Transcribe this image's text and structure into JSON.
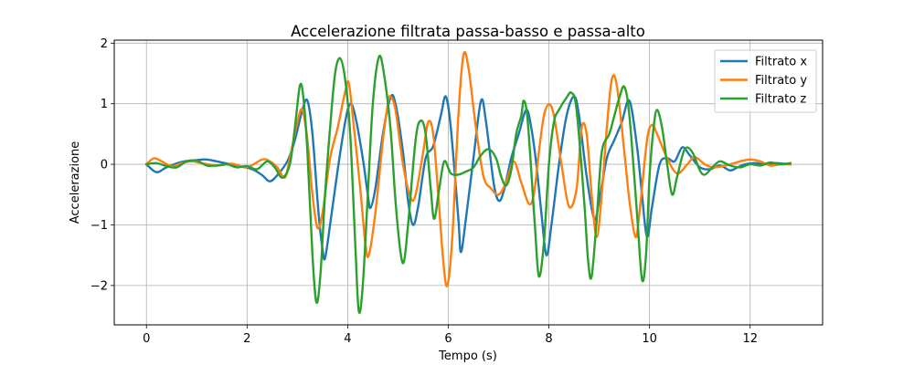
{
  "chart_data": {
    "type": "line",
    "title": "Accelerazione filtrata passa-basso e passa-alto",
    "xlabel": "Tempo (s)",
    "ylabel": "Accelerazione",
    "xlim": [
      -0.64,
      13.44
    ],
    "ylim": [
      -2.65,
      2.05
    ],
    "xticks": [
      0,
      2,
      4,
      6,
      8,
      10,
      12
    ],
    "yticks": [
      -2,
      -1,
      0,
      1,
      2
    ],
    "xtick_labels": [
      "0",
      "2",
      "4",
      "6",
      "8",
      "10",
      "12"
    ],
    "ytick_labels": [
      "−2",
      "−1",
      "0",
      "1",
      "2"
    ],
    "grid": true,
    "legend_position": "top-right",
    "series": [
      {
        "name": "Filtrato x",
        "color": "#1f77b4",
        "points": [
          [
            0,
            0
          ],
          [
            0.2,
            -0.13
          ],
          [
            0.4,
            -0.05
          ],
          [
            0.7,
            0.04
          ],
          [
            1.0,
            0.07
          ],
          [
            1.2,
            0.08
          ],
          [
            1.5,
            0.03
          ],
          [
            1.8,
            -0.02
          ],
          [
            2.1,
            -0.08
          ],
          [
            2.3,
            -0.18
          ],
          [
            2.45,
            -0.28
          ],
          [
            2.6,
            -0.18
          ],
          [
            2.8,
            0.05
          ],
          [
            2.95,
            0.4
          ],
          [
            3.1,
            0.9
          ],
          [
            3.2,
            1.05
          ],
          [
            3.3,
            0.5
          ],
          [
            3.42,
            -0.8
          ],
          [
            3.5,
            -1.4
          ],
          [
            3.55,
            -1.55
          ],
          [
            3.65,
            -1.0
          ],
          [
            3.8,
            -0.1
          ],
          [
            3.95,
            0.7
          ],
          [
            4.05,
            1.0
          ],
          [
            4.15,
            0.8
          ],
          [
            4.3,
            0.1
          ],
          [
            4.4,
            -0.5
          ],
          [
            4.45,
            -0.72
          ],
          [
            4.55,
            -0.4
          ],
          [
            4.7,
            0.5
          ],
          [
            4.85,
            1.1
          ],
          [
            4.95,
            1.0
          ],
          [
            5.1,
            0.2
          ],
          [
            5.2,
            -0.6
          ],
          [
            5.3,
            -1.0
          ],
          [
            5.4,
            -0.7
          ],
          [
            5.55,
            0.1
          ],
          [
            5.7,
            0.3
          ],
          [
            5.85,
            0.8
          ],
          [
            5.95,
            1.12
          ],
          [
            6.05,
            0.6
          ],
          [
            6.2,
            -0.9
          ],
          [
            6.25,
            -1.45
          ],
          [
            6.35,
            -0.9
          ],
          [
            6.5,
            0.1
          ],
          [
            6.65,
            1.05
          ],
          [
            6.75,
            0.7
          ],
          [
            6.9,
            -0.3
          ],
          [
            7.0,
            -0.6
          ],
          [
            7.1,
            -0.45
          ],
          [
            7.25,
            0.1
          ],
          [
            7.4,
            0.5
          ],
          [
            7.55,
            0.9
          ],
          [
            7.65,
            0.6
          ],
          [
            7.75,
            0.0
          ],
          [
            7.85,
            -0.8
          ],
          [
            7.95,
            -1.5
          ],
          [
            8.05,
            -1.0
          ],
          [
            8.2,
            0.0
          ],
          [
            8.35,
            0.8
          ],
          [
            8.5,
            1.12
          ],
          [
            8.6,
            0.8
          ],
          [
            8.75,
            -0.2
          ],
          [
            8.9,
            -0.9
          ],
          [
            9.0,
            -0.6
          ],
          [
            9.15,
            0.1
          ],
          [
            9.3,
            0.4
          ],
          [
            9.45,
            0.7
          ],
          [
            9.6,
            1.05
          ],
          [
            9.75,
            0.3
          ],
          [
            9.85,
            -0.5
          ],
          [
            9.95,
            -1.2
          ],
          [
            10.05,
            -0.7
          ],
          [
            10.2,
            0.0
          ],
          [
            10.35,
            0.1
          ],
          [
            10.5,
            0.05
          ],
          [
            10.65,
            0.28
          ],
          [
            10.8,
            0.15
          ],
          [
            11.0,
            -0.05
          ],
          [
            11.2,
            -0.08
          ],
          [
            11.4,
            -0.02
          ],
          [
            11.6,
            -0.1
          ],
          [
            11.75,
            -0.05
          ],
          [
            11.9,
            0.0
          ],
          [
            12.1,
            0.02
          ],
          [
            12.3,
            0.0
          ],
          [
            12.5,
            0.02
          ],
          [
            12.8,
            0.0
          ]
        ]
      },
      {
        "name": "Filtrato y",
        "color": "#ff7f0e",
        "points": [
          [
            0,
            0
          ],
          [
            0.15,
            0.1
          ],
          [
            0.3,
            0.05
          ],
          [
            0.5,
            -0.03
          ],
          [
            0.7,
            0.02
          ],
          [
            0.9,
            0.05
          ],
          [
            1.1,
            0.02
          ],
          [
            1.4,
            -0.02
          ],
          [
            1.7,
            0.01
          ],
          [
            2.0,
            -0.05
          ],
          [
            2.3,
            0.08
          ],
          [
            2.45,
            0.05
          ],
          [
            2.6,
            -0.05
          ],
          [
            2.75,
            -0.22
          ],
          [
            2.85,
            0.1
          ],
          [
            3.0,
            0.7
          ],
          [
            3.1,
            0.9
          ],
          [
            3.2,
            0.4
          ],
          [
            3.3,
            -0.5
          ],
          [
            3.4,
            -1.05
          ],
          [
            3.5,
            -0.8
          ],
          [
            3.65,
            0.1
          ],
          [
            3.8,
            0.6
          ],
          [
            3.95,
            1.2
          ],
          [
            4.02,
            1.35
          ],
          [
            4.1,
            0.8
          ],
          [
            4.25,
            -0.4
          ],
          [
            4.35,
            -1.3
          ],
          [
            4.42,
            -1.5
          ],
          [
            4.55,
            -0.8
          ],
          [
            4.7,
            0.4
          ],
          [
            4.8,
            1.0
          ],
          [
            4.85,
            1.12
          ],
          [
            4.95,
            0.9
          ],
          [
            5.1,
            0.0
          ],
          [
            5.25,
            -0.55
          ],
          [
            5.35,
            -0.5
          ],
          [
            5.5,
            0.2
          ],
          [
            5.6,
            0.7
          ],
          [
            5.7,
            0.5
          ],
          [
            5.8,
            -0.5
          ],
          [
            5.9,
            -1.6
          ],
          [
            5.98,
            -2.0
          ],
          [
            6.08,
            -1.2
          ],
          [
            6.2,
            0.8
          ],
          [
            6.3,
            1.8
          ],
          [
            6.4,
            1.6
          ],
          [
            6.55,
            0.6
          ],
          [
            6.7,
            -0.2
          ],
          [
            6.85,
            -0.4
          ],
          [
            7.0,
            -0.5
          ],
          [
            7.15,
            -0.3
          ],
          [
            7.3,
            0.05
          ],
          [
            7.45,
            -0.3
          ],
          [
            7.6,
            -0.65
          ],
          [
            7.7,
            -0.5
          ],
          [
            7.8,
            0.2
          ],
          [
            7.9,
            0.8
          ],
          [
            8.0,
            0.99
          ],
          [
            8.1,
            0.8
          ],
          [
            8.25,
            0.0
          ],
          [
            8.4,
            -0.7
          ],
          [
            8.55,
            -0.4
          ],
          [
            8.65,
            0.6
          ],
          [
            8.75,
            0.5
          ],
          [
            8.85,
            -0.5
          ],
          [
            8.95,
            -1.2
          ],
          [
            9.05,
            -0.5
          ],
          [
            9.15,
            0.6
          ],
          [
            9.25,
            1.4
          ],
          [
            9.35,
            1.3
          ],
          [
            9.5,
            0.2
          ],
          [
            9.6,
            -0.6
          ],
          [
            9.72,
            -1.2
          ],
          [
            9.8,
            -0.8
          ],
          [
            9.95,
            0.4
          ],
          [
            10.05,
            0.65
          ],
          [
            10.15,
            0.5
          ],
          [
            10.35,
            0.1
          ],
          [
            10.55,
            -0.15
          ],
          [
            10.75,
            0.0
          ],
          [
            10.9,
            0.12
          ],
          [
            11.1,
            0.0
          ],
          [
            11.3,
            -0.05
          ],
          [
            11.6,
            0.0
          ],
          [
            11.8,
            0.05
          ],
          [
            12.0,
            0.08
          ],
          [
            12.2,
            0.05
          ],
          [
            12.4,
            -0.02
          ],
          [
            12.6,
            0.0
          ],
          [
            12.8,
            0.0
          ]
        ]
      },
      {
        "name": "Filtrato z",
        "color": "#2ca02c",
        "points": [
          [
            0,
            0
          ],
          [
            0.2,
            0.02
          ],
          [
            0.4,
            -0.03
          ],
          [
            0.6,
            -0.05
          ],
          [
            0.8,
            0.05
          ],
          [
            1.0,
            0.06
          ],
          [
            1.2,
            -0.02
          ],
          [
            1.4,
            -0.02
          ],
          [
            1.6,
            0.0
          ],
          [
            1.8,
            -0.05
          ],
          [
            2.0,
            -0.03
          ],
          [
            2.2,
            -0.08
          ],
          [
            2.4,
            0.05
          ],
          [
            2.55,
            -0.05
          ],
          [
            2.7,
            -0.22
          ],
          [
            2.85,
            0.0
          ],
          [
            2.95,
            0.6
          ],
          [
            3.05,
            1.3
          ],
          [
            3.12,
            1.1
          ],
          [
            3.2,
            0.2
          ],
          [
            3.3,
            -1.5
          ],
          [
            3.38,
            -2.28
          ],
          [
            3.46,
            -1.8
          ],
          [
            3.55,
            -0.5
          ],
          [
            3.65,
            0.6
          ],
          [
            3.75,
            1.5
          ],
          [
            3.85,
            1.75
          ],
          [
            3.95,
            1.4
          ],
          [
            4.05,
            0.5
          ],
          [
            4.15,
            -1.3
          ],
          [
            4.22,
            -2.42
          ],
          [
            4.3,
            -2.0
          ],
          [
            4.4,
            -0.5
          ],
          [
            4.5,
            1.0
          ],
          [
            4.62,
            1.77
          ],
          [
            4.72,
            1.5
          ],
          [
            4.85,
            0.6
          ],
          [
            4.95,
            -0.6
          ],
          [
            5.05,
            -1.45
          ],
          [
            5.12,
            -1.6
          ],
          [
            5.2,
            -1.0
          ],
          [
            5.35,
            0.4
          ],
          [
            5.45,
            0.72
          ],
          [
            5.55,
            0.5
          ],
          [
            5.65,
            -0.4
          ],
          [
            5.72,
            -0.9
          ],
          [
            5.82,
            -0.4
          ],
          [
            5.92,
            0.05
          ],
          [
            6.05,
            -0.15
          ],
          [
            6.2,
            -0.17
          ],
          [
            6.35,
            -0.12
          ],
          [
            6.5,
            -0.05
          ],
          [
            6.65,
            0.15
          ],
          [
            6.8,
            0.25
          ],
          [
            6.95,
            0.1
          ],
          [
            7.05,
            -0.2
          ],
          [
            7.15,
            -0.35
          ],
          [
            7.25,
            -0.1
          ],
          [
            7.35,
            0.5
          ],
          [
            7.45,
            0.8
          ],
          [
            7.5,
            1.05
          ],
          [
            7.58,
            0.7
          ],
          [
            7.72,
            -1.0
          ],
          [
            7.8,
            -1.85
          ],
          [
            7.9,
            -1.3
          ],
          [
            8.0,
            0.0
          ],
          [
            8.1,
            0.7
          ],
          [
            8.2,
            0.9
          ],
          [
            8.35,
            1.1
          ],
          [
            8.45,
            1.18
          ],
          [
            8.55,
            0.9
          ],
          [
            8.7,
            -0.6
          ],
          [
            8.78,
            -1.6
          ],
          [
            8.85,
            -1.85
          ],
          [
            8.95,
            -0.9
          ],
          [
            9.05,
            0.2
          ],
          [
            9.2,
            0.5
          ],
          [
            9.3,
            0.8
          ],
          [
            9.4,
            1.1
          ],
          [
            9.5,
            1.28
          ],
          [
            9.6,
            0.8
          ],
          [
            9.75,
            -0.8
          ],
          [
            9.85,
            -1.9
          ],
          [
            9.93,
            -1.5
          ],
          [
            10.0,
            -0.2
          ],
          [
            10.08,
            0.6
          ],
          [
            10.15,
            0.9
          ],
          [
            10.25,
            0.6
          ],
          [
            10.35,
            0.0
          ],
          [
            10.45,
            -0.5
          ],
          [
            10.55,
            -0.2
          ],
          [
            10.7,
            0.25
          ],
          [
            10.85,
            0.2
          ],
          [
            11.0,
            -0.1
          ],
          [
            11.1,
            -0.17
          ],
          [
            11.25,
            -0.05
          ],
          [
            11.4,
            0.05
          ],
          [
            11.6,
            -0.02
          ],
          [
            11.8,
            -0.05
          ],
          [
            12.0,
            0.0
          ],
          [
            12.2,
            -0.02
          ],
          [
            12.4,
            0.03
          ],
          [
            12.6,
            0.0
          ],
          [
            12.8,
            0.02
          ]
        ]
      }
    ]
  }
}
